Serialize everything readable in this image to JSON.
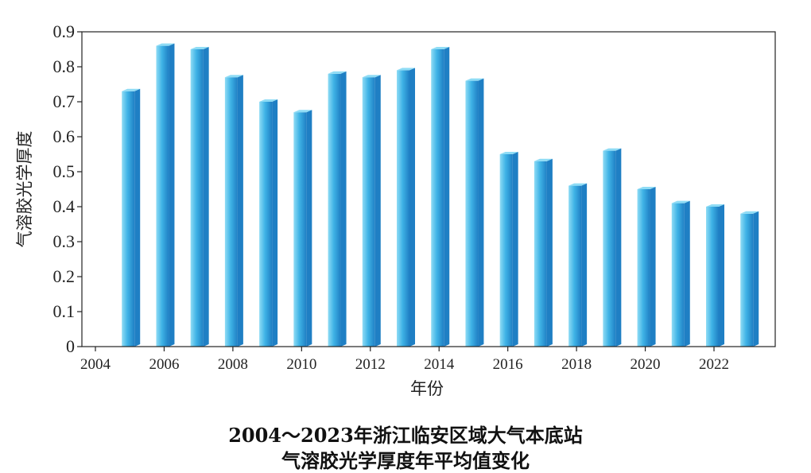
{
  "chart_data": {
    "type": "bar",
    "caption_line1": "2004～2023年浙江临安区域大气本底站",
    "caption_line2": "气溶胶光学厚度年平均值变化",
    "xlabel": "年份",
    "ylabel": "气溶胶光学厚度",
    "x_tick_labels": [
      "2004",
      "2006",
      "2008",
      "2010",
      "2012",
      "2014",
      "2016",
      "2018",
      "2020",
      "2022"
    ],
    "y_tick_labels": [
      "0",
      "0.1",
      "0.2",
      "0.3",
      "0.4",
      "0.5",
      "0.6",
      "0.7",
      "0.8",
      "0.9"
    ],
    "ylim": [
      0,
      0.9
    ],
    "xlim": [
      2004,
      2023.5
    ],
    "categories": [
      "2005",
      "2006",
      "2007",
      "2008",
      "2009",
      "2010",
      "2011",
      "2012",
      "2013",
      "2014",
      "2015",
      "2016",
      "2017",
      "2018",
      "2019",
      "2020",
      "2021",
      "2022",
      "2023"
    ],
    "values": [
      0.73,
      0.86,
      0.85,
      0.77,
      0.7,
      0.67,
      0.78,
      0.77,
      0.79,
      0.85,
      0.76,
      0.55,
      0.53,
      0.46,
      0.56,
      0.45,
      0.41,
      0.4,
      0.38
    ],
    "bar_color_light": "#8fdcf5",
    "bar_color_mid": "#3fb3e6",
    "bar_color_dark": "#1f7fc4",
    "axis_color": "#222222",
    "grid": false,
    "legend": "none"
  }
}
